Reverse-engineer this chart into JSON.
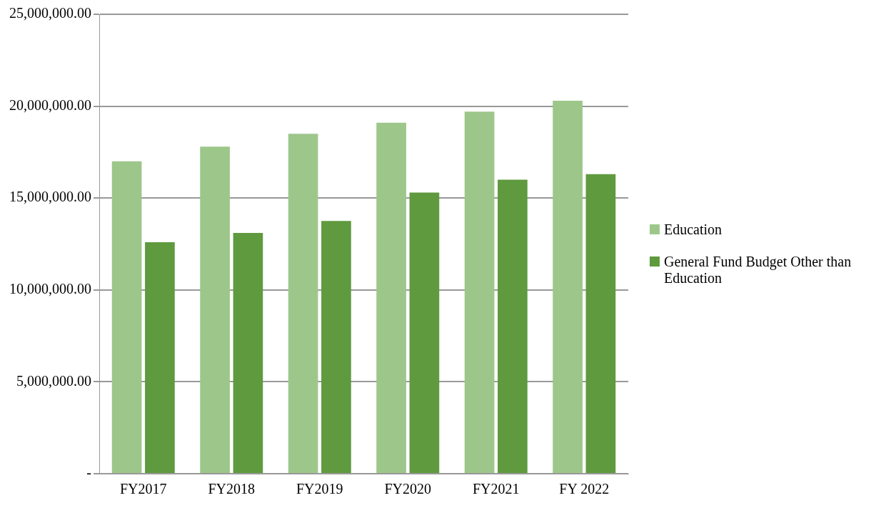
{
  "chart_data": {
    "type": "bar",
    "categories": [
      "FY2017",
      "FY2018",
      "FY2019",
      "FY2020",
      "FY2021",
      "FY 2022"
    ],
    "series": [
      {
        "name": "Education",
        "color": "#9dc78a",
        "values": [
          17000000,
          17800000,
          18500000,
          19100000,
          19700000,
          20300000
        ]
      },
      {
        "name": "General Fund Budget Other than Education",
        "color": "#5f9a3e",
        "values": [
          12600000,
          13100000,
          13750000,
          15300000,
          16000000,
          16300000
        ]
      }
    ],
    "ylim": [
      0,
      25000000
    ],
    "yticks": [
      {
        "value": 0,
        "label": "-"
      },
      {
        "value": 5000000,
        "label": "5,000,000.00"
      },
      {
        "value": 10000000,
        "label": "10,000,000.00"
      },
      {
        "value": 15000000,
        "label": "15,000,000.00"
      },
      {
        "value": 20000000,
        "label": "20,000,000.00"
      },
      {
        "value": 25000000,
        "label": "25,000,000.00"
      }
    ],
    "grid": "y",
    "legend": "right"
  }
}
